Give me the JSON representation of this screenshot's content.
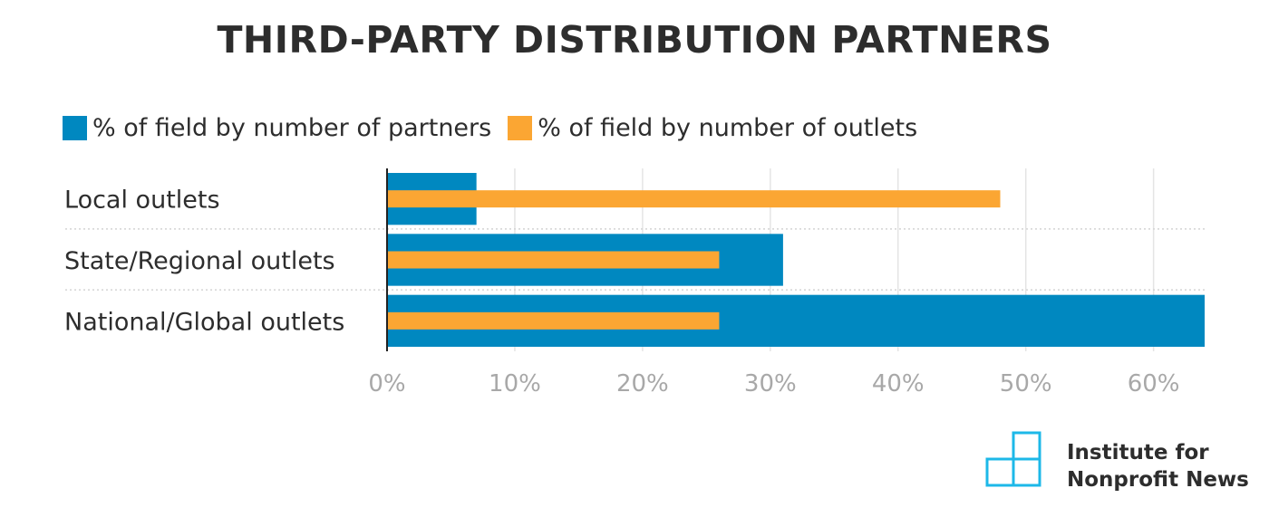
{
  "chart_data": {
    "type": "bar",
    "orientation": "horizontal",
    "title": "THIRD-PARTY DISTRIBUTION PARTNERS",
    "categories": [
      "Local outlets",
      "State/Regional outlets",
      "National/Global outlets"
    ],
    "series": [
      {
        "name": "% of field by number of partners",
        "color": "#0088C0",
        "values": [
          7,
          31,
          64
        ]
      },
      {
        "name": "% of field by number of outlets",
        "color": "#FBA633",
        "values": [
          48,
          26,
          26
        ]
      }
    ],
    "xlim": [
      0,
      64
    ],
    "xticks": [
      0,
      10,
      20,
      30,
      40,
      50,
      60
    ],
    "xtick_labels": [
      "0%",
      "10%",
      "20%",
      "30%",
      "40%",
      "50%",
      "60%"
    ],
    "grid": true,
    "legend_position": "top-left"
  },
  "logo": {
    "line1": "Institute for",
    "line2": "Nonprofit News",
    "color": "#1DB8E8"
  }
}
